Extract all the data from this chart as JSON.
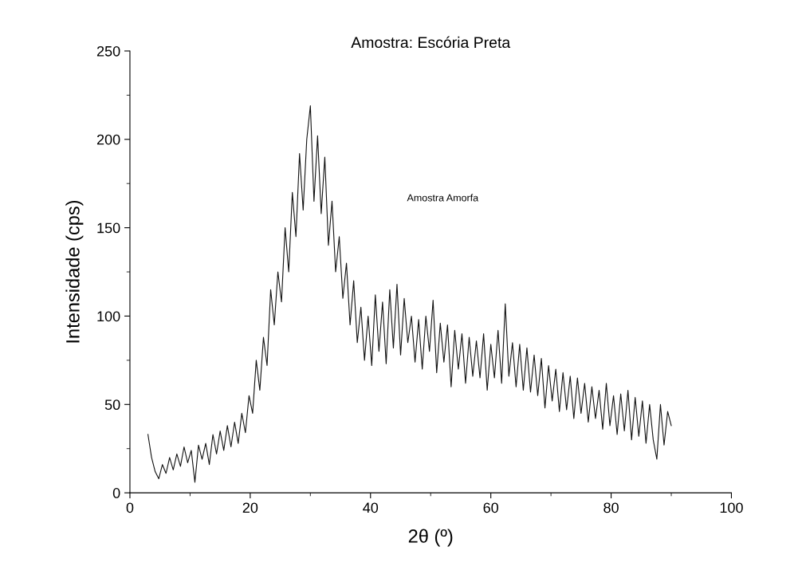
{
  "chart_data": {
    "type": "line",
    "title": "Amostra: Escória Preta",
    "xlabel": "2θ (º)",
    "ylabel": "Intensidade (cps)",
    "annotations": [
      "Amostra Amorfa"
    ],
    "series": [
      {
        "color": "#111111",
        "x": [
          3.0,
          3.6,
          4.2,
          4.8,
          5.4,
          6.0,
          6.6,
          7.2,
          7.8,
          8.4,
          9.0,
          9.6,
          10.2,
          10.8,
          11.4,
          12.0,
          12.6,
          13.2,
          13.8,
          14.4,
          15.0,
          15.6,
          16.2,
          16.8,
          17.4,
          18.0,
          18.6,
          19.2,
          19.8,
          20.4,
          21.0,
          21.6,
          22.2,
          22.8,
          23.4,
          24.0,
          24.6,
          25.2,
          25.8,
          26.4,
          27.0,
          27.6,
          28.2,
          28.8,
          29.4,
          30.0,
          30.6,
          31.2,
          31.8,
          32.4,
          33.0,
          33.6,
          34.2,
          34.8,
          35.4,
          36.0,
          36.6,
          37.2,
          37.8,
          38.4,
          39.0,
          39.6,
          40.2,
          40.8,
          41.4,
          42.0,
          42.6,
          43.2,
          43.8,
          44.4,
          45.0,
          45.6,
          46.2,
          46.8,
          47.4,
          48.0,
          48.6,
          49.2,
          49.8,
          50.4,
          51.0,
          51.6,
          52.2,
          52.8,
          53.4,
          54.0,
          54.6,
          55.2,
          55.8,
          56.4,
          57.0,
          57.6,
          58.2,
          58.8,
          59.4,
          60.0,
          60.6,
          61.2,
          61.8,
          62.4,
          63.0,
          63.6,
          64.2,
          64.8,
          65.4,
          66.0,
          66.6,
          67.2,
          67.8,
          68.4,
          69.0,
          69.6,
          70.2,
          70.8,
          71.4,
          72.0,
          72.6,
          73.2,
          73.8,
          74.4,
          75.0,
          75.6,
          76.2,
          76.8,
          77.4,
          78.0,
          78.6,
          79.2,
          79.8,
          80.4,
          81.0,
          81.6,
          82.2,
          82.8,
          83.4,
          84.0,
          84.6,
          85.2,
          85.8,
          86.4,
          87.0,
          87.6,
          88.2,
          88.8,
          89.4,
          90.0
        ],
        "values": [
          33,
          20,
          12,
          8,
          16,
          11,
          20,
          13,
          22,
          15,
          26,
          17,
          24,
          6,
          27,
          19,
          28,
          16,
          33,
          22,
          35,
          24,
          38,
          26,
          40,
          28,
          45,
          34,
          55,
          45,
          75,
          58,
          88,
          72,
          115,
          95,
          125,
          108,
          150,
          125,
          170,
          145,
          192,
          160,
          200,
          219,
          165,
          202,
          158,
          190,
          140,
          165,
          125,
          145,
          110,
          130,
          95,
          120,
          85,
          105,
          75,
          100,
          72,
          112,
          80,
          108,
          73,
          115,
          82,
          118,
          78,
          110,
          85,
          100,
          74,
          98,
          70,
          100,
          80,
          109,
          68,
          96,
          74,
          95,
          60,
          92,
          70,
          90,
          62,
          88,
          66,
          86,
          65,
          90,
          58,
          84,
          65,
          92,
          62,
          107,
          66,
          85,
          60,
          84,
          58,
          82,
          57,
          78,
          55,
          76,
          48,
          72,
          52,
          70,
          46,
          68,
          47,
          66,
          42,
          65,
          45,
          62,
          40,
          60,
          42,
          58,
          36,
          62,
          38,
          55,
          33,
          56,
          35,
          58,
          30,
          54,
          32,
          52,
          28,
          50,
          30,
          19,
          50,
          27,
          46,
          38
        ]
      }
    ],
    "xlim": [
      0,
      100
    ],
    "xticks": [
      0,
      20,
      40,
      60,
      80,
      100
    ],
    "ylim": [
      0,
      250
    ],
    "yticks": [
      0,
      50,
      100,
      150,
      200,
      250
    ],
    "grid": false,
    "marker": "none",
    "line_style": "solid"
  }
}
